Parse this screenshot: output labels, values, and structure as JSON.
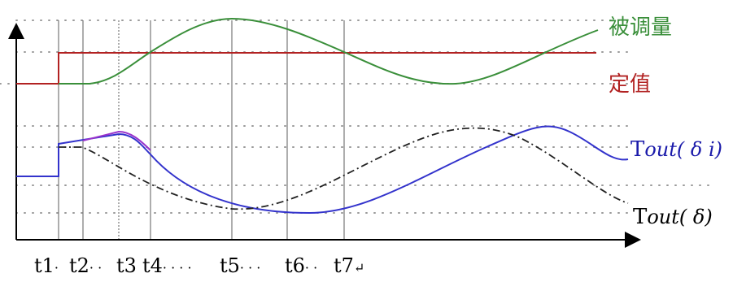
{
  "labels": {
    "controlled": "被调量",
    "setpoint": "定值",
    "tout_di_prefix": "T",
    "tout_di_italic": "out( δ i)",
    "tout_d_prefix": "T",
    "tout_d_italic": "out( δ)"
  },
  "ticks": [
    {
      "main": "t1",
      "dots": "·"
    },
    {
      "main": "t2",
      "dots": "· ·"
    },
    {
      "main": "t3",
      "dots": ""
    },
    {
      "main": "t4",
      "dots": "· · · ·"
    },
    {
      "main": "t5",
      "dots": "· · ·"
    },
    {
      "main": "t6",
      "dots": "· ·"
    },
    {
      "main": "t7",
      "dots": "↵"
    }
  ],
  "colors": {
    "controlled": "#3a8f3a",
    "setpoint": "#b22222",
    "tout_di": "#3333cc",
    "tout_di_peak": "#9933cc",
    "tout_d": "#222222",
    "axis": "#000000",
    "grid": "#aaaaaa",
    "label_setpoint": "#b22222",
    "label_controlled": "#3a8f3a",
    "label_tout_di": "#1a1aaa"
  }
}
